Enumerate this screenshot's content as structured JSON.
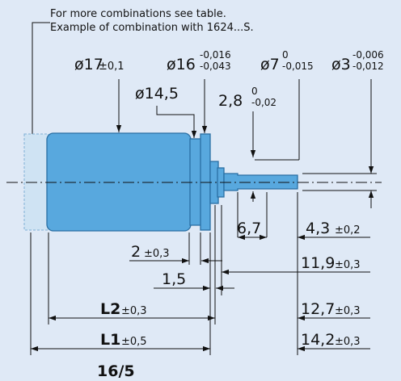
{
  "note": {
    "line1": "For more combinations see table.",
    "line2": "Example of combination with 1624...S."
  },
  "dimensions": {
    "d17": {
      "value": "ø17",
      "tol": "±0,1"
    },
    "d16": {
      "value": "ø16",
      "tol_upper": "-0,016",
      "tol_lower": "-0,043"
    },
    "d7": {
      "value": "ø7",
      "tol_upper": "0",
      "tol_lower": "-0,015"
    },
    "d3": {
      "value": "ø3",
      "tol_upper": "-0,006",
      "tol_lower": "-0,012"
    },
    "d14_5": {
      "value": "ø14,5"
    },
    "l2_8": {
      "value": "2,8",
      "tol_upper": "0",
      "tol_lower": "-0,02"
    },
    "l6_7": {
      "value": "6,7"
    },
    "l4_3": {
      "value": "4,3",
      "tol": "±0,2"
    },
    "l2": {
      "value": "2",
      "tol": "±0,3"
    },
    "l11_9": {
      "value": "11,9",
      "tol": "±0,3"
    },
    "l1_5": {
      "value": "1,5"
    },
    "L2": {
      "value": "L2",
      "tol": "±0,3"
    },
    "l12_7": {
      "value": "12,7",
      "tol": "±0,3"
    },
    "L1": {
      "value": "L1",
      "tol": "±0,5"
    },
    "l14_2": {
      "value": "14,2",
      "tol": "±0,3"
    }
  },
  "page_label": "16/5",
  "colors": {
    "background": "#dfe9f6",
    "motor_body": "#58a8de",
    "motor_light": "#cfe3f3",
    "line": "#111111"
  }
}
